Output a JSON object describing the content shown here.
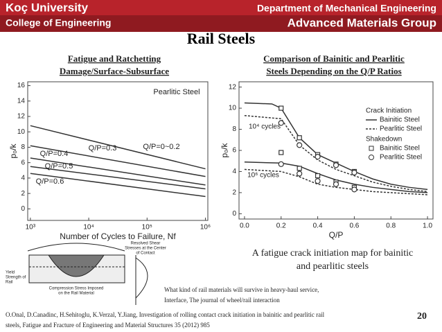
{
  "header": {
    "university": "Koç University",
    "college": "College of Engineering",
    "department": "Department of Mechanical Engineering",
    "group": "Advanced Materials Group"
  },
  "title": "Rail Steels",
  "chart_data": [
    {
      "type": "line",
      "title": [
        "Fatigue and Ratchetting",
        "Damage/Surface-Subsurface"
      ],
      "annotation": "Pearlitic Steel",
      "xlabel": "Number of Cycles to Failure, Nf",
      "ylabel": "p₀/k",
      "log_x": true,
      "xlim": [
        900,
        1100000
      ],
      "ylim": [
        -1.5,
        16.5
      ],
      "xticks": [
        {
          "value": 1000,
          "label": "10³"
        },
        {
          "value": 10000,
          "label": "10⁴"
        },
        {
          "value": 100000,
          "label": "10⁵"
        },
        {
          "value": 1000000,
          "label": "10⁶"
        }
      ],
      "yticks": [
        0,
        2,
        4,
        6,
        8,
        10,
        12,
        14,
        16
      ],
      "x": [
        1000,
        1000000
      ],
      "series": [
        {
          "name": "Q/P=0~0.2",
          "color": "#333333",
          "values": [
            10.8,
            5.2
          ]
        },
        {
          "name": "Q/P=0.3",
          "color": "#333333",
          "values": [
            8.2,
            4.2
          ]
        },
        {
          "name": "Q/P=0.4",
          "color": "#333333",
          "values": [
            6.6,
            3.1
          ]
        },
        {
          "name": "Q/P=0.5",
          "color": "#333333",
          "values": [
            5.5,
            2.6
          ]
        },
        {
          "name": "Q/P=0.6",
          "color": "#333333",
          "values": [
            4.6,
            1.6
          ]
        }
      ]
    },
    {
      "type": "line",
      "title": [
        "Comparison of Bainitic and Pearlitic",
        "Steels Depending on the Q/P Ratios"
      ],
      "annotations": [
        "10⁴ cycles",
        "10⁶ cycles"
      ],
      "xlabel": "Q/P",
      "ylabel": "p₀/k",
      "xlim": [
        -0.03,
        1.03
      ],
      "ylim": [
        -0.5,
        12.5
      ],
      "xticks": [
        {
          "value": 0,
          "label": "0.0"
        },
        {
          "value": 0.2,
          "label": "0.2"
        },
        {
          "value": 0.4,
          "label": "0.4"
        },
        {
          "value": 0.6,
          "label": "0.6"
        },
        {
          "value": 0.8,
          "label": "0.8"
        },
        {
          "value": 1,
          "label": "1.0"
        }
      ],
      "yticks": [
        0,
        2,
        4,
        6,
        8,
        10,
        12
      ],
      "groups": [
        {
          "title": "Crack Initiation",
          "series": [
            {
              "name": "Bainitic Steel",
              "color": "#333333",
              "dash": false,
              "x": [
                0,
                0.15,
                0.2,
                0.3,
                0.4,
                0.5,
                0.6,
                0.7,
                0.8,
                0.9,
                1
              ],
              "values": [
                10.5,
                10.4,
                10,
                7.2,
                5.6,
                4.8,
                4,
                3.3,
                2.8,
                2.5,
                2.3
              ]
            },
            {
              "name": "Pearlitic Steel",
              "color": "#333333",
              "dash": true,
              "x": [
                0,
                0.2,
                0.3,
                0.4,
                0.5,
                0.6,
                0.7,
                0.8,
                0.9,
                1
              ],
              "values": [
                9.3,
                9,
                6.5,
                5.1,
                4.2,
                3.6,
                3,
                2.6,
                2.3,
                2.1
              ]
            },
            {
              "color": "#333333",
              "dash": false,
              "x": [
                0,
                0.2,
                0.3,
                0.4,
                0.5,
                0.6,
                0.7,
                0.8,
                0.9,
                1
              ],
              "values": [
                4.9,
                4.8,
                4.5,
                3.8,
                3.2,
                2.8,
                2.5,
                2.3,
                2.1,
                2
              ]
            },
            {
              "color": "#333333",
              "dash": true,
              "x": [
                0,
                0.2,
                0.3,
                0.4,
                0.5,
                0.6,
                0.7,
                0.8,
                0.9,
                1
              ],
              "values": [
                4.2,
                4,
                3.5,
                2.8,
                2.5,
                2.3,
                2.1,
                2,
                1.9,
                1.8
              ]
            }
          ]
        },
        {
          "title": "Shakedown",
          "series": [
            {
              "name": "Bainitic Steel",
              "color": "#333333",
              "marker": "square",
              "x": [
                0.2,
                0.3,
                0.4,
                0.5,
                0.6,
                0.2,
                0.3,
                0.4,
                0.5,
                0.6
              ],
              "values": [
                10,
                7.2,
                5.6,
                4.7,
                4,
                5.8,
                4.3,
                3.6,
                3,
                2.5
              ]
            },
            {
              "name": "Pearlitic Steel",
              "color": "#333333",
              "marker": "circle",
              "x": [
                0.2,
                0.3,
                0.4,
                0.5,
                0.6,
                0.2,
                0.3,
                0.4,
                0.5,
                0.6
              ],
              "values": [
                8.6,
                6.5,
                5.4,
                4.6,
                3.9,
                4.7,
                3.8,
                3.1,
                2.8,
                2.3
              ]
            }
          ]
        }
      ]
    }
  ],
  "caption": [
    "A fatigue crack initiation map for bainitic",
    "and pearlitic steels"
  ],
  "diagram": {
    "yield": [
      "Yield",
      "Strength of",
      "Rail"
    ],
    "compression": [
      "Compression Stress Imposed",
      "on the Rail Material"
    ],
    "shear": [
      "Resolved Shear",
      "Stresses at the Center",
      "of Contact"
    ]
  },
  "note": [
    "What kind of rail materials will survive in heavy-haul service,",
    "Interface, The journal of wheel/rail interaction"
  ],
  "reference": [
    "O.Onal, D.Canadinc, H.Sehitoglu, K.Verzal, Y.Jiang, Investigation of rolling contact crack initiation in bainitic and pearlitic rail",
    "steels, Fatigue and Fracture of Engineering and Material Structures 35 (2012) 985"
  ],
  "page": "20"
}
